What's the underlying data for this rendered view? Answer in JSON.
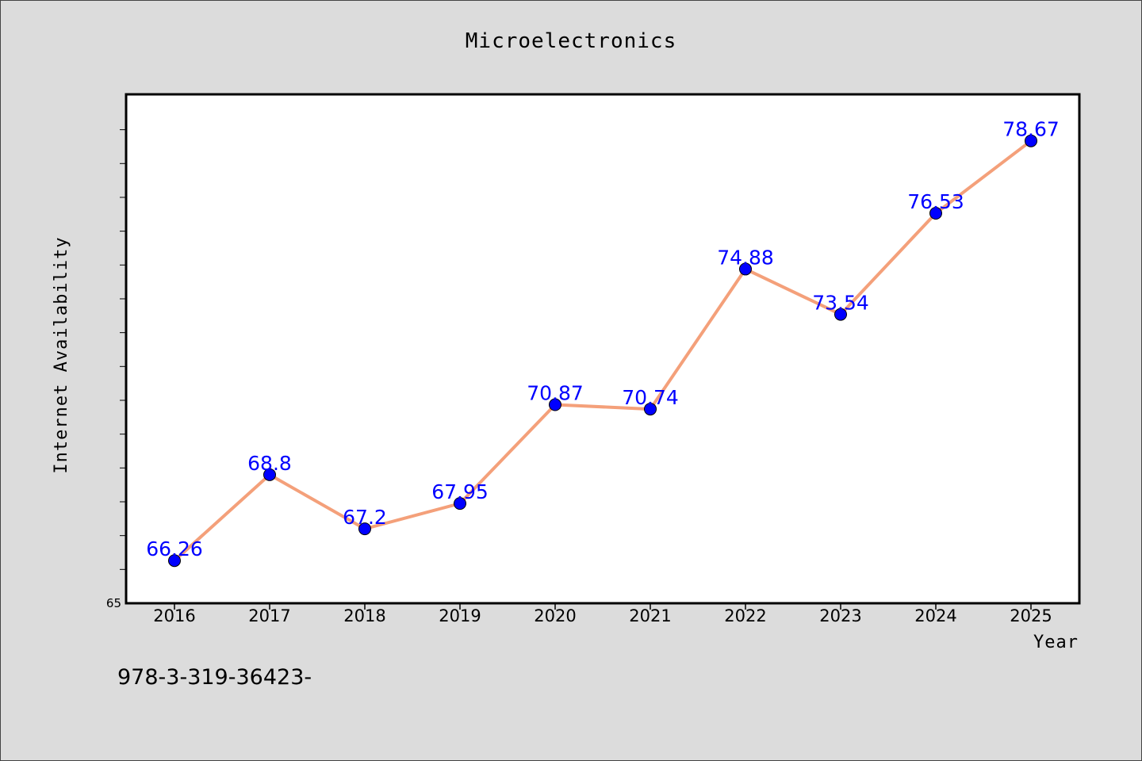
{
  "chart_data": {
    "type": "line",
    "title": "Microelectronics",
    "xlabel": "Year",
    "ylabel": "Internet Availability",
    "x": [
      "2016",
      "2017",
      "2018",
      "2019",
      "2020",
      "2021",
      "2022",
      "2023",
      "2024",
      "2025"
    ],
    "series": [
      {
        "values": [
          66.26,
          68.8,
          67.2,
          67.95,
          70.87,
          70.74,
          74.88,
          73.54,
          76.53,
          78.67
        ],
        "labels": [
          "66.26",
          "68.8",
          "67.2",
          "67.95",
          "70.87",
          "70.74",
          "74.88",
          "73.54",
          "76.53",
          "78.67"
        ]
      }
    ],
    "ylim": [
      65,
      80
    ],
    "ytick_labels": [
      {
        "value": 65,
        "label": "65"
      }
    ],
    "yticks_minor": [
      66,
      67,
      68,
      69,
      70,
      71,
      72,
      73,
      74,
      75,
      76,
      77,
      78,
      79
    ],
    "grid": false,
    "line_color": "#f4a07a",
    "marker_color": "#0000ff",
    "label_color": "#0000ff"
  },
  "footer": {
    "text": "978-3-319-36423-"
  },
  "colors": {
    "background": "#dcdcdc",
    "plot_background": "#ffffff"
  }
}
